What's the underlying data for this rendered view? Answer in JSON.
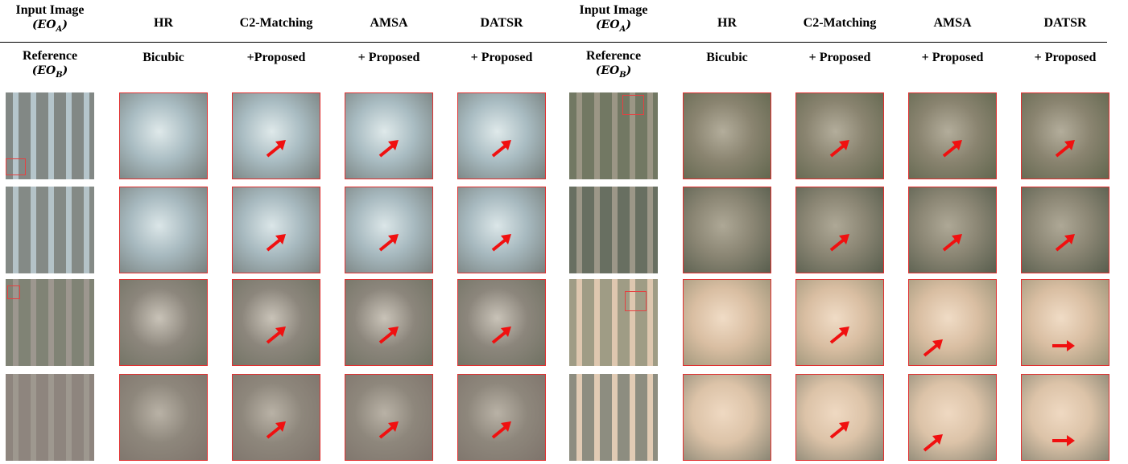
{
  "panels": [
    {
      "header_top": [
        {
          "text": "Input Image",
          "symbol": "(EO",
          "subscript": "A",
          "close": ")"
        },
        {
          "text": "HR"
        },
        {
          "text": "C2-Matching"
        },
        {
          "text": "AMSA"
        },
        {
          "text": "DATSR"
        }
      ],
      "header_bottom": [
        {
          "text": "Reference",
          "symbol": "(EO",
          "subscript": "B",
          "close": ")"
        },
        {
          "text": "Bicubic"
        },
        {
          "text": "+Proposed"
        },
        {
          "text": "+ Proposed"
        },
        {
          "text": "+ Proposed"
        }
      ]
    },
    {
      "header_top": [
        {
          "text": "Input Image",
          "symbol": "(EO",
          "subscript": "A",
          "close": ")"
        },
        {
          "text": "HR"
        },
        {
          "text": "C2-Matching"
        },
        {
          "text": "AMSA"
        },
        {
          "text": "DATSR"
        }
      ],
      "header_bottom": [
        {
          "text": "Reference",
          "symbol": "(EO",
          "subscript": "B",
          "close": ")"
        },
        {
          "text": "Bicubic"
        },
        {
          "text": "+ Proposed"
        },
        {
          "text": "+ Proposed"
        },
        {
          "text": "+ Proposed"
        }
      ]
    }
  ]
}
